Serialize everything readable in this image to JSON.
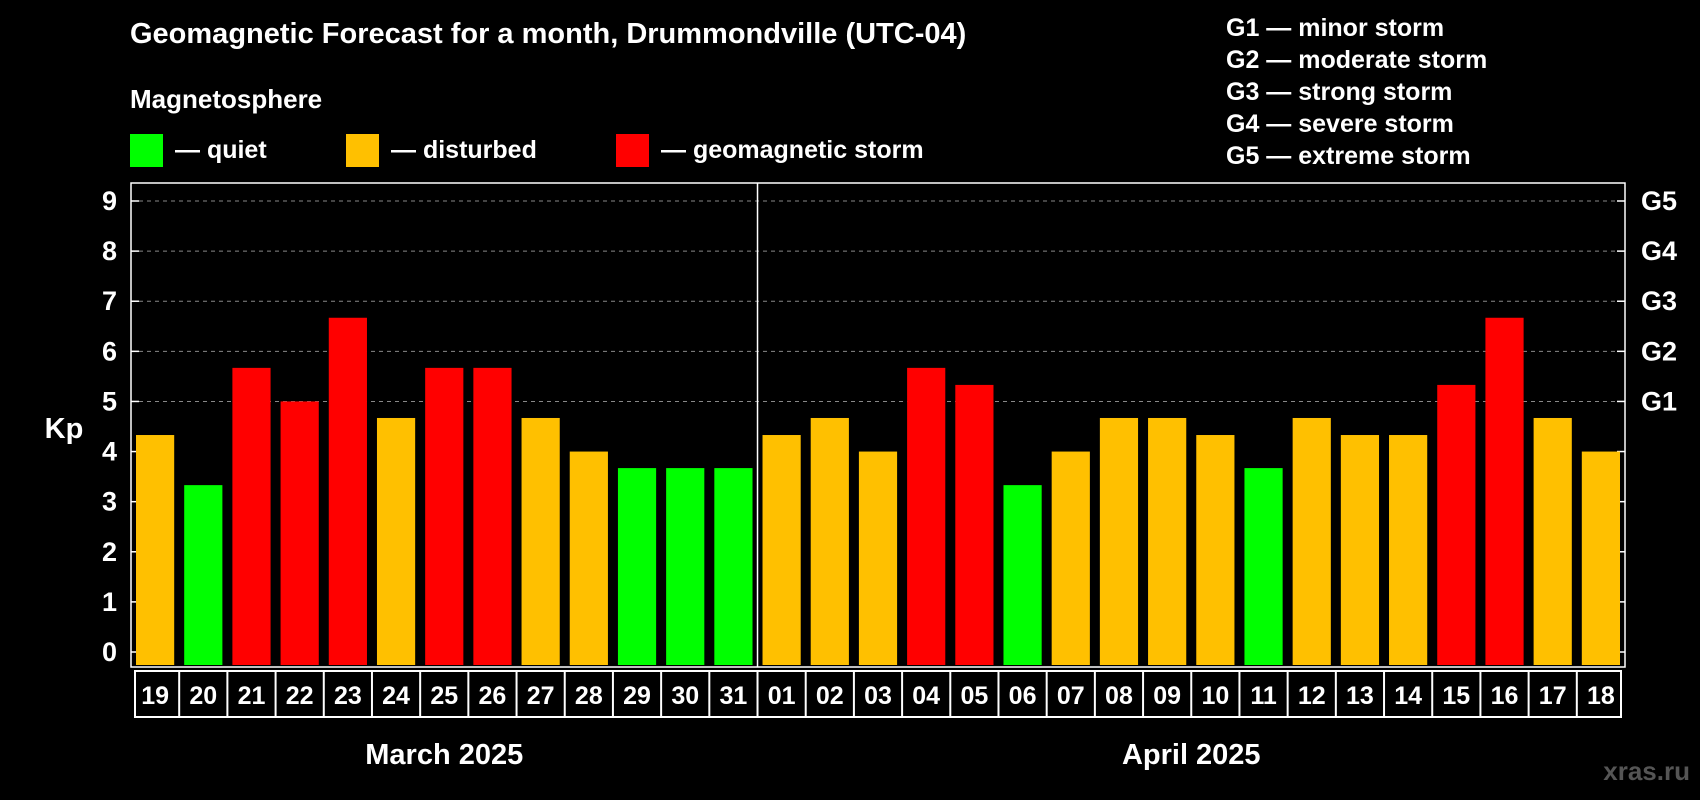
{
  "title": "Geomagnetic Forecast for a month, Drummondville (UTC-04)",
  "legend": {
    "heading": "Magnetosphere",
    "items": [
      {
        "label": "— quiet",
        "color": "#00ff00",
        "key": "quiet"
      },
      {
        "label": "— disturbed",
        "color": "#ffc000",
        "key": "disturbed"
      },
      {
        "label": "— geomagnetic storm",
        "color": "#ff0000",
        "key": "storm"
      }
    ]
  },
  "storm_scale": [
    "G1 — minor storm",
    "G2 — moderate storm",
    "G3 — strong storm",
    "G4 — severe storm",
    "G5 — extreme storm"
  ],
  "watermark": "xras.ru",
  "chart_data": {
    "type": "bar",
    "ylabel": "Kp",
    "ylim": [
      0,
      9
    ],
    "yticks": [
      "0",
      "1",
      "2",
      "3",
      "4",
      "5",
      "6",
      "7",
      "8",
      "9"
    ],
    "right_axis_labels": [
      {
        "kp": 5,
        "label": "G1"
      },
      {
        "kp": 6,
        "label": "G2"
      },
      {
        "kp": 7,
        "label": "G3"
      },
      {
        "kp": 8,
        "label": "G4"
      },
      {
        "kp": 9,
        "label": "G5"
      }
    ],
    "grid": "dashed horizontal at Kp 5–9",
    "months": [
      {
        "label": "March 2025",
        "days": 13
      },
      {
        "label": "April 2025",
        "days": 18
      }
    ],
    "categories": [
      "19",
      "20",
      "21",
      "22",
      "23",
      "24",
      "25",
      "26",
      "27",
      "28",
      "29",
      "30",
      "31",
      "01",
      "02",
      "03",
      "04",
      "05",
      "06",
      "07",
      "08",
      "09",
      "10",
      "11",
      "12",
      "13",
      "14",
      "15",
      "16",
      "17",
      "18"
    ],
    "values": [
      4.33,
      3.33,
      5.67,
      5.0,
      6.67,
      4.67,
      5.67,
      5.67,
      4.67,
      4.0,
      3.67,
      3.67,
      3.67,
      4.33,
      4.67,
      4.0,
      5.67,
      5.33,
      3.33,
      4.0,
      4.67,
      4.67,
      4.33,
      3.67,
      4.67,
      4.33,
      4.33,
      5.33,
      6.67,
      4.67,
      4.0
    ],
    "levels": [
      "disturbed",
      "quiet",
      "storm",
      "storm",
      "storm",
      "disturbed",
      "storm",
      "storm",
      "disturbed",
      "disturbed",
      "quiet",
      "quiet",
      "quiet",
      "disturbed",
      "disturbed",
      "disturbed",
      "storm",
      "storm",
      "quiet",
      "disturbed",
      "disturbed",
      "disturbed",
      "disturbed",
      "quiet",
      "disturbed",
      "disturbed",
      "disturbed",
      "storm",
      "storm",
      "disturbed",
      "disturbed"
    ]
  }
}
